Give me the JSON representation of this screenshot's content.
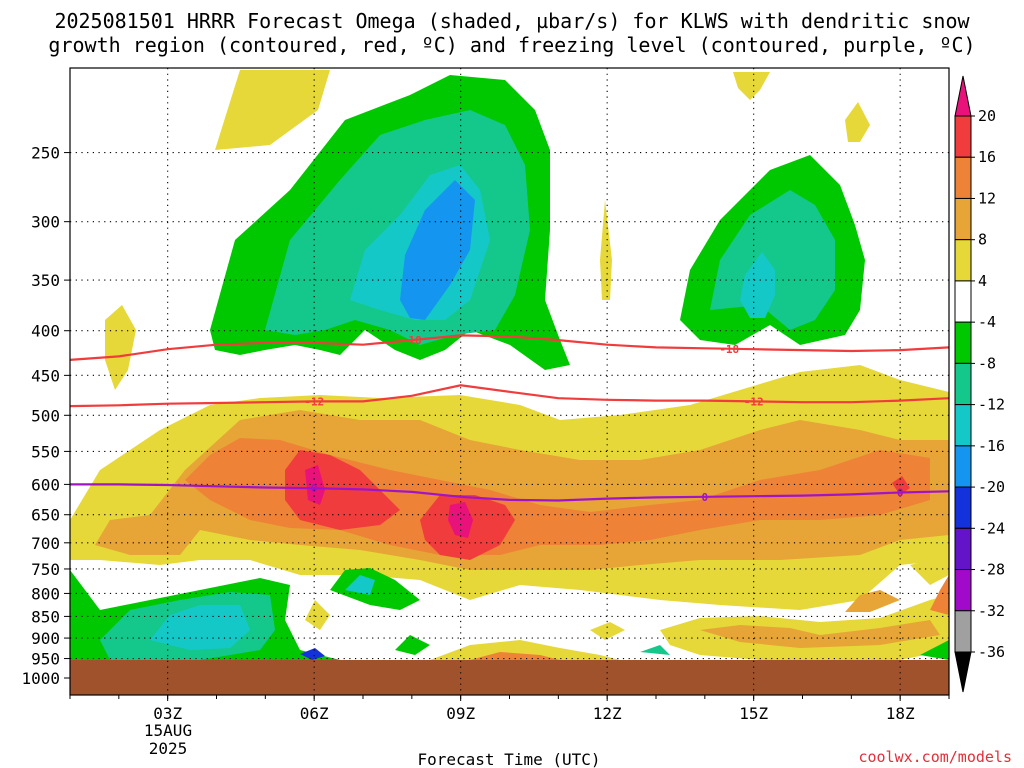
{
  "chart_data": {
    "type": "time-height-contour",
    "title_line1": "2025081501 HRRR Forecast Omega (shaded, µbar/s) for KLWS with dendritic snow",
    "title_line2": "growth region (contoured, red, ºC) and freezing level (contoured, purple, ºC)",
    "xlabel": "Forecast Time (UTC)",
    "x_ticks": [
      "03Z",
      "06Z",
      "09Z",
      "12Z",
      "15Z",
      "18Z"
    ],
    "x_date_label": [
      "15AUG",
      "2025"
    ],
    "x_range_hours": [
      1,
      19
    ],
    "y_ticks": [
      "250",
      "300",
      "350",
      "400",
      "450",
      "500",
      "550",
      "600",
      "650",
      "700",
      "750",
      "800",
      "850",
      "900",
      "950",
      "1000"
    ],
    "y_log_scale": true,
    "colorbar_levels": [
      "20",
      "16",
      "12",
      "8",
      "4",
      "-4",
      "-8",
      "-12",
      "-16",
      "-20",
      "-24",
      "-28",
      "-32",
      "-36"
    ],
    "colorbar_colors": [
      "#e8127a",
      "#f03c3c",
      "#ee8236",
      "#e6a536",
      "#e6d838",
      "#ffffff",
      "#00c800",
      "#14c88c",
      "#14c8c8",
      "#1496f0",
      "#1432dc",
      "#6414c8",
      "#a00ac8",
      "#a0a0a0",
      "#000000"
    ],
    "contour_lines": [
      {
        "label": "-18",
        "color": "#f03c3c"
      },
      {
        "label": "-12",
        "color": "#f03c3c"
      },
      {
        "label": "0",
        "color": "#a014c8"
      }
    ],
    "ground_color": "#a0522d",
    "grid": "dotted",
    "credit": "coolwx.com/models"
  }
}
